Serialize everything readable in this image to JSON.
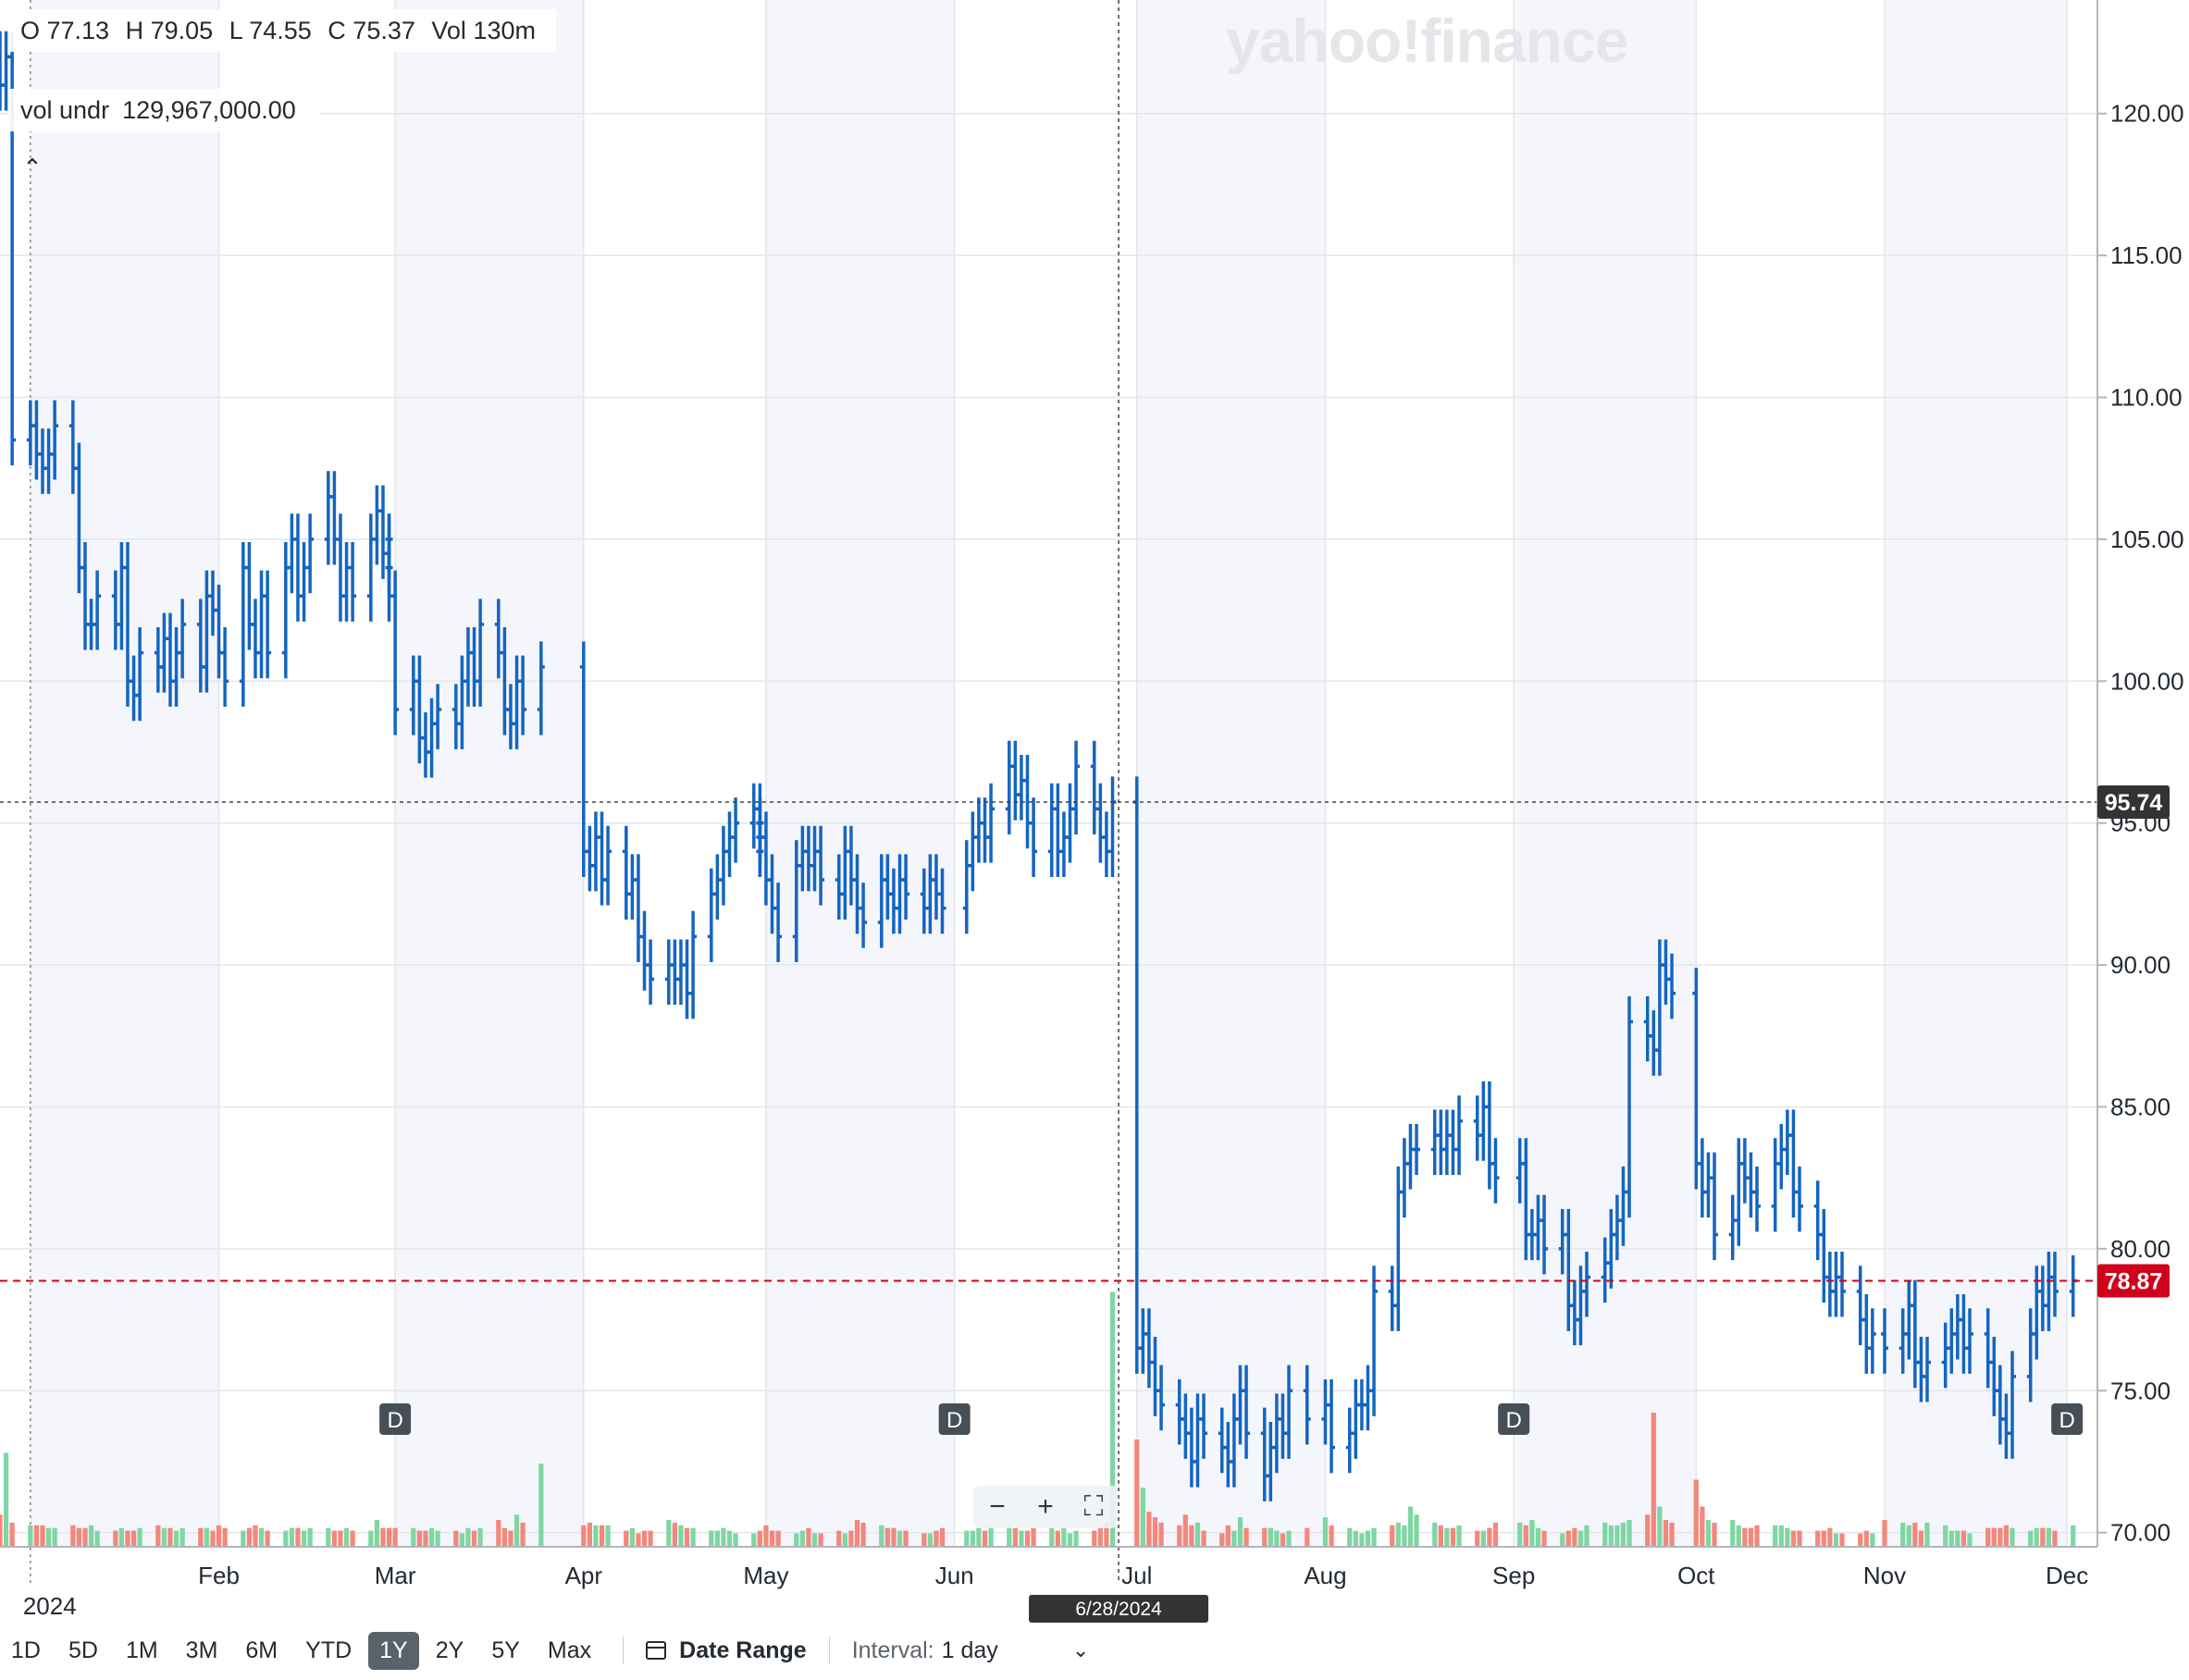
{
  "ohlc": {
    "open": "O 77.13",
    "high": "H 79.05",
    "low": "L 74.55",
    "close": "C 75.37",
    "volume": "Vol 130m"
  },
  "volume_indicator": {
    "label": "vol undr",
    "value": "129,967,000.00"
  },
  "watermark": "yahoo!finance",
  "crosshair": {
    "date_label": "6/28/2024",
    "price_label": "95.74",
    "price": 95.74
  },
  "last_price": {
    "label": "78.87",
    "value": 78.87
  },
  "colors": {
    "bar": "#1565c0",
    "vol_up": "#7fd6a3",
    "vol_down": "#f4877b",
    "last": "#d0021b",
    "crosshair_tag": "#333333",
    "shade": "#f4f6fb",
    "grid": "#e3e6ea"
  },
  "chart_data": {
    "type": "ohlc_bar_with_volume",
    "ylim": [
      69.5,
      124.0
    ],
    "x_range": [
      "2023-12-27",
      "2024-12-06"
    ],
    "y_ticks": [
      {
        "v": 70,
        "label": "70.00"
      },
      {
        "v": 75,
        "label": "75.00"
      },
      {
        "v": 80,
        "label": "80.00"
      },
      {
        "v": 85,
        "label": "85.00"
      },
      {
        "v": 90,
        "label": "90.00"
      },
      {
        "v": 95,
        "label": "95.00"
      },
      {
        "v": 100,
        "label": "100.00"
      },
      {
        "v": 105,
        "label": "105.00"
      },
      {
        "v": 110,
        "label": "110.00"
      },
      {
        "v": 115,
        "label": "115.00"
      },
      {
        "v": 120,
        "label": "120.00"
      }
    ],
    "x_ticks": [
      {
        "date": "2024-01-01",
        "label": "2024"
      },
      {
        "date": "2024-02-01",
        "label": "Feb"
      },
      {
        "date": "2024-03-01",
        "label": "Mar"
      },
      {
        "date": "2024-04-01",
        "label": "Apr"
      },
      {
        "date": "2024-05-01",
        "label": "May"
      },
      {
        "date": "2024-06-01",
        "label": "Jun"
      },
      {
        "date": "2024-07-01",
        "label": "Jul"
      },
      {
        "date": "2024-08-01",
        "label": "Aug"
      },
      {
        "date": "2024-09-01",
        "label": "Sep"
      },
      {
        "date": "2024-10-01",
        "label": "Oct"
      },
      {
        "date": "2024-11-01",
        "label": "Nov"
      },
      {
        "date": "2024-12-01",
        "label": "Dec"
      }
    ],
    "shaded_months": [
      "2024-01",
      "2024-03",
      "2024-05",
      "2024-07",
      "2024-09",
      "2024-11"
    ],
    "crosshair_date": "2024-06-28",
    "dividends": [
      {
        "date": "2024-03-01",
        "label": "D"
      },
      {
        "date": "2024-06-01",
        "label": "D"
      },
      {
        "date": "2024-09-01",
        "label": "D"
      },
      {
        "date": "2024-12-01",
        "label": "D"
      }
    ],
    "closes_by_month": [
      [
        121,
        122,
        108.5,
        109,
        108,
        107.5,
        108,
        109,
        107.5,
        104,
        102,
        102,
        103,
        102,
        104,
        100,
        99.5,
        101,
        100.5,
        101.5,
        100,
        101,
        102,
        100.5,
        103,
        102.5
      ],
      [
        101,
        100,
        104,
        102,
        101,
        103,
        101,
        104,
        105,
        103,
        104,
        105,
        106.5,
        105,
        103,
        104,
        103,
        105,
        106,
        104.5,
        105,
        104,
        103
      ],
      [
        99,
        100,
        98,
        97.5,
        98.5,
        99,
        98.5,
        100,
        101,
        100,
        102,
        101,
        99,
        98.5,
        100,
        99,
        100.5
      ],
      [
        94,
        93.5,
        94.5,
        93,
        94,
        92.5,
        93,
        91,
        90,
        89.5,
        90,
        89.5,
        90,
        89,
        91,
        92.5,
        93,
        94,
        94.5,
        95,
        95.5,
        94.5,
        95,
        94,
        95,
        94.5
      ],
      [
        93,
        92,
        91,
        93.5,
        94,
        93.5,
        94,
        93,
        92.5,
        94,
        93,
        92,
        91.5,
        93,
        92.5,
        92,
        93,
        92.5,
        92,
        93,
        92.5,
        92
      ],
      [
        93.5,
        94.5,
        95,
        94.5,
        95.5,
        97,
        96,
        96.5,
        95,
        94,
        95.5,
        94,
        94.5,
        95.5,
        97,
        95.5,
        94.5,
        94,
        95.74
      ],
      [
        76.5,
        77,
        76,
        75,
        74.5,
        74,
        73.5,
        72.5,
        74,
        73.5,
        73,
        72.5,
        74,
        75,
        73.5,
        72,
        73,
        74,
        73.5,
        75,
        74
      ],
      [
        74.5,
        73,
        73.5,
        74.5,
        74.5,
        75,
        78.5,
        78,
        82,
        83,
        83.5,
        83.5,
        84,
        83.5,
        84,
        83.5,
        84.5,
        84,
        85,
        83,
        82.5
      ],
      [
        83,
        80.5,
        80.5,
        81,
        80,
        80.5,
        78,
        77.5,
        78.5,
        79,
        79.5,
        80.5,
        81,
        82,
        88,
        87.5,
        87,
        90,
        89.5,
        89
      ],
      [
        83,
        82,
        82.5,
        80.5,
        81,
        83,
        82.5,
        82,
        81.5,
        83,
        83.5,
        84,
        82,
        81.5,
        80.5,
        79,
        78.5,
        79,
        78.5,
        77.5,
        76.5,
        77
      ],
      [
        76.5,
        77,
        78,
        76,
        75.5,
        76,
        76.5,
        77,
        77.5,
        76.5,
        77,
        76,
        75,
        74,
        73.5,
        75.5,
        77,
        78.5,
        78,
        79,
        78.5
      ],
      [
        78.87
      ]
    ],
    "volumes_by_month": [
      [
        12,
        35,
        9,
        8,
        8,
        8,
        7,
        7,
        8,
        7,
        7,
        8,
        6,
        6,
        7,
        6,
        6,
        7,
        8,
        7,
        7,
        6,
        7,
        7,
        7,
        6
      ],
      [
        8,
        7,
        6,
        7,
        8,
        7,
        6,
        6,
        7,
        7,
        6,
        7,
        7,
        6,
        6,
        7,
        6,
        6,
        10,
        7,
        6,
        6,
        7,
        8
      ],
      [
        7,
        7,
        6,
        6,
        7,
        6,
        6,
        5,
        7,
        6,
        7,
        10,
        7,
        6,
        12,
        9,
        31,
        12,
        11,
        9,
        8
      ],
      [
        8,
        9,
        8,
        8,
        8,
        6,
        7,
        5,
        6,
        6,
        10,
        9,
        8,
        7,
        7,
        6,
        6,
        7,
        6,
        5,
        5,
        5,
        4,
        4,
        4
      ],
      [
        8,
        6,
        6,
        5,
        6,
        7,
        5,
        5,
        6,
        5,
        6,
        10,
        9,
        8,
        7,
        7,
        6,
        6,
        5,
        5,
        6,
        7,
        6
      ],
      [
        6,
        6,
        7,
        6,
        8,
        8,
        7,
        6,
        6,
        7,
        7,
        6,
        7,
        5,
        6,
        6,
        7,
        9,
        95
      ],
      [
        40,
        22,
        13,
        11,
        9,
        8,
        12,
        8,
        9,
        6,
        5,
        8,
        6,
        11,
        7,
        7,
        7,
        6,
        5,
        6,
        7,
        6,
        8
      ],
      [
        11,
        8,
        7,
        6,
        5,
        6,
        7,
        8,
        9,
        8,
        15,
        12,
        9,
        8,
        7,
        7,
        8,
        6,
        6,
        7,
        9
      ],
      [
        9,
        8,
        10,
        7,
        6,
        5,
        6,
        7,
        6,
        8,
        9,
        8,
        8,
        9,
        10,
        12,
        50,
        15,
        10,
        9,
        7
      ],
      [
        25,
        15,
        10,
        9,
        10,
        8,
        7,
        7,
        8,
        8,
        8,
        7,
        6,
        6,
        6,
        6,
        7,
        5,
        5,
        5,
        6,
        5
      ],
      [
        10,
        9,
        8,
        9,
        6,
        9,
        8,
        6,
        6,
        6,
        5,
        7,
        7,
        7,
        8,
        7,
        6,
        7,
        7,
        7,
        6
      ],
      [
        8
      ]
    ]
  },
  "zoom": {
    "minus": "−",
    "plus": "+",
    "fit": "⛶"
  },
  "toolbar": {
    "ranges": [
      "1D",
      "5D",
      "1M",
      "3M",
      "6M",
      "YTD",
      "1Y",
      "2Y",
      "5Y",
      "Max"
    ],
    "active": "1Y",
    "date_range": "Date Range",
    "interval_label": "Interval:",
    "interval_value": "1 day"
  }
}
